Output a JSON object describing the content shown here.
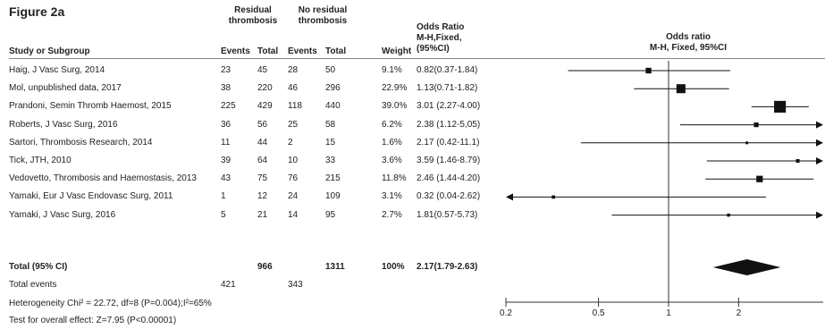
{
  "figure_title": "Figure 2a",
  "headers": {
    "residual_group": [
      "Residual",
      "thrombosis"
    ],
    "no_residual_group": [
      "No residual",
      "thrombosis"
    ],
    "study": "Study or Subgroup",
    "events": "Events",
    "total": "Total",
    "weight": "Weight",
    "or_col": [
      "Odds Ratio",
      "M-H,Fixed,",
      "(95%CI)"
    ],
    "plot_col": [
      "Odds ratio",
      "M-H, Fixed, 95%CI"
    ]
  },
  "studies": [
    {
      "name": "Haig, J Vasc Surg, 2014",
      "r_events": "23",
      "r_total": "45",
      "n_events": "28",
      "n_total": "50",
      "weight": "9.1%",
      "or_text": "0.82(0.37-1.84)"
    },
    {
      "name": "Mol, unpublished data, 2017",
      "r_events": "38",
      "r_total": "220",
      "n_events": "46",
      "n_total": "296",
      "weight": "22.9%",
      "or_text": "1.13(0.71-1.82)"
    },
    {
      "name": "Prandoni, Semin Thromb Haemost, 2015",
      "r_events": "225",
      "r_total": "429",
      "n_events": "118",
      "n_total": "440",
      "weight": "39.0%",
      "or_text": "3.01 (2.27-4.00)"
    },
    {
      "name": "Roberts, J Vasc Surg, 2016",
      "r_events": "36",
      "r_total": "56",
      "n_events": "25",
      "n_total": "58",
      "weight": "6.2%",
      "or_text": "2.38 (1.12-5,05)"
    },
    {
      "name": "Sartori, Thrombosis Research, 2014",
      "r_events": "11",
      "r_total": "44",
      "n_events": "2",
      "n_total": "15",
      "weight": "1.6%",
      "or_text": "2.17 (0.42-11.1)"
    },
    {
      "name": "Tick, JTH, 2010",
      "r_events": "39",
      "r_total": "64",
      "n_events": "10",
      "n_total": "33",
      "weight": "3.6%",
      "or_text": "3.59 (1.46-8.79)"
    },
    {
      "name": "Vedovetto, Thrombosis and Haemostasis, 2013",
      "r_events": "43",
      "r_total": "75",
      "n_events": "76",
      "n_total": "215",
      "weight": "11.8%",
      "or_text": "2.46 (1.44-4.20)"
    },
    {
      "name": "Yamaki, Eur J Vasc Endovasc Surg, 2011",
      "r_events": "1",
      "r_total": "12",
      "n_events": "24",
      "n_total": "109",
      "weight": "3.1%",
      "or_text": "0.32 (0.04-2.62)"
    },
    {
      "name": "Yamaki, J Vasc Surg, 2016",
      "r_events": "5",
      "r_total": "21",
      "n_events": "14",
      "n_total": "95",
      "weight": "2.7%",
      "or_text": "1.81(0.57-5.73)"
    }
  ],
  "total_row": {
    "label": "Total (95% CI)",
    "r_total": "966",
    "n_total": "1311",
    "weight": "100%",
    "or_text": "2.17(1.79-2.63)"
  },
  "total_events": {
    "label": "Total events",
    "r_events": "421",
    "n_events": "343"
  },
  "heterogeneity": "Heterogeneity Chi² = 22.72, df=8 (P=0.004);I²=65%",
  "overall_effect": "Test for overall effect: Z=7.95 (P<0.00001)",
  "chart_data": {
    "type": "forest",
    "scale": "log",
    "xlim": [
      0.2,
      5
    ],
    "ticks": [
      0.2,
      0.5,
      1,
      2
    ],
    "tick_labels": [
      "0.2",
      "0.5",
      "1",
      "2"
    ],
    "reference_line": 1,
    "points": [
      {
        "or": 0.82,
        "lo": 0.37,
        "hi": 1.84,
        "weight": 9.1
      },
      {
        "or": 1.13,
        "lo": 0.71,
        "hi": 1.82,
        "weight": 22.9
      },
      {
        "or": 3.01,
        "lo": 2.27,
        "hi": 4.0,
        "weight": 39.0
      },
      {
        "or": 2.38,
        "lo": 1.12,
        "hi": 5.05,
        "weight": 6.2
      },
      {
        "or": 2.17,
        "lo": 0.42,
        "hi": 11.1,
        "weight": 1.6
      },
      {
        "or": 3.59,
        "lo": 1.46,
        "hi": 8.79,
        "weight": 3.6
      },
      {
        "or": 2.46,
        "lo": 1.44,
        "hi": 4.2,
        "weight": 11.8
      },
      {
        "or": 0.32,
        "lo": 0.04,
        "hi": 2.62,
        "weight": 3.1
      },
      {
        "or": 1.81,
        "lo": 0.57,
        "hi": 5.73,
        "weight": 2.7
      }
    ],
    "summary": {
      "or": 2.17,
      "lo": 1.79,
      "hi": 2.63
    },
    "colors": {
      "marker": "#111111",
      "line": "#111111",
      "axis": "#333333"
    }
  }
}
